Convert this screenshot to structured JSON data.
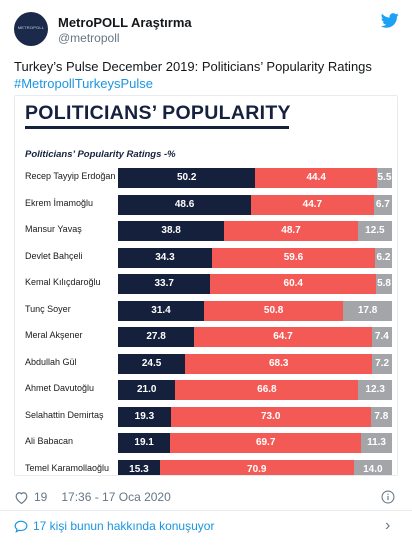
{
  "account": {
    "name": "MetroPOLL Araştırma",
    "handle": "@metropoll",
    "avatar_text": "METROPOLL"
  },
  "tweet": {
    "text": "Turkey’s Pulse December 2019: Politicians’ Popularity Ratings",
    "hashtag": "#MetropollTurkeysPulse"
  },
  "media": {
    "title": "POLITICIANS’ POPULARITY",
    "subtitle": "Politicians’ Popularity Ratings -%"
  },
  "chart_data": {
    "type": "bar",
    "stacked": true,
    "orientation": "horizontal",
    "title": "POLITICIANS’ POPULARITY",
    "subtitle": "Politicians’ Popularity Ratings -%",
    "categories": [
      "Recep Tayyip Erdoğan",
      "Ekrem İmamoğlu",
      "Mansur Yavaş",
      "Devlet Bahçeli",
      "Kemal Kılıçdaroğlu",
      "Tunç Soyer",
      "Meral Akşener",
      "Abdullah Gül",
      "Ahmet Davutoğlu",
      "Selahattin Demirtaş",
      "Ali Babacan",
      "Temel Karamollaoğlu"
    ],
    "series": [
      {
        "values": [
          50.2,
          48.6,
          38.8,
          34.3,
          33.7,
          31.4,
          27.8,
          24.5,
          21.0,
          19.3,
          19.1,
          15.3
        ],
        "color": "#15203d"
      },
      {
        "values": [
          44.4,
          44.7,
          48.7,
          59.6,
          60.4,
          50.8,
          64.7,
          68.3,
          66.8,
          73.0,
          69.7,
          70.9
        ],
        "color": "#f45a55"
      },
      {
        "values": [
          5.5,
          6.7,
          12.5,
          6.2,
          5.8,
          17.8,
          7.4,
          7.2,
          12.3,
          7.8,
          11.3,
          14.0
        ],
        "color": "#a3a5a8"
      }
    ],
    "xlim": [
      0,
      100
    ]
  },
  "footer": {
    "likes": "19",
    "time": "17:36 - 17 Oca 2020",
    "conversation": "17 kişi bunun hakkında konuşuyor"
  },
  "colors": {
    "link": "#1b95e0",
    "navy": "#15203d",
    "red": "#f45a55",
    "grey": "#a3a5a8"
  }
}
